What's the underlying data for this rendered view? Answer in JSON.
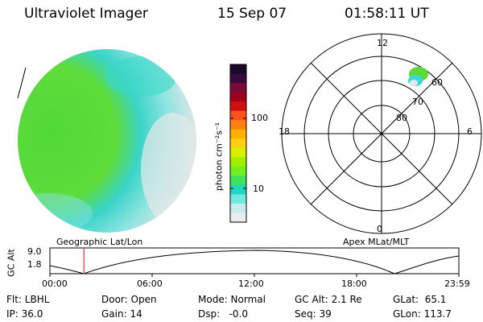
{
  "header": {
    "instrument": "Ultraviolet Imager",
    "date": "15 Sep 07",
    "time": "01:58:11 UT"
  },
  "colorbar": {
    "unit_label": "photon cm⁻²s⁻¹",
    "tick_100": "100",
    "tick_10": "10",
    "colors_top_to_bottom": [
      "#1a0a2a",
      "#3a0a3a",
      "#7a0a3a",
      "#a00020",
      "#d01010",
      "#ff5020",
      "#ff8010",
      "#ffb000",
      "#ffd010",
      "#d8f000",
      "#a0f000",
      "#70f020",
      "#40e060",
      "#20d8c0",
      "#70e8e0",
      "#c8ecec",
      "#e8eeee"
    ]
  },
  "polar_plot": {
    "mlt_labels": {
      "top": "12",
      "left": "18",
      "right": "6",
      "bottom": "0"
    },
    "lat_labels": [
      "80",
      "70",
      "60"
    ]
  },
  "sat_track": {
    "title_left": "Geographic Lat/Lon",
    "title_right": "Apex MLat/MLT",
    "ylabel": "GC Alt",
    "ytick_top": "9.0",
    "ytick_bottom": "1.8",
    "time_ticks": [
      "00:00",
      "06:00",
      "12:00",
      "18:00",
      "23:59"
    ],
    "current_time_fraction": 0.083,
    "marker_color": "#ff0000"
  },
  "status": {
    "flt": "Flt: LBHL",
    "ip": "IP: 36.0",
    "door": "Door: Open",
    "gain": "Gain: 14",
    "mode": "Mode: Normal",
    "dsp": "Dsp:   -0.0",
    "gc_alt": "GC Alt: 2.1 Re",
    "seq": "Seq: 39",
    "glat": "GLat:  65.1",
    "glon": "GLon: 113.7"
  },
  "colors": {
    "aurora_green": "#5ed838",
    "aurora_cyan": "#3ad8d8",
    "background_gray": "#e4e8e8"
  }
}
